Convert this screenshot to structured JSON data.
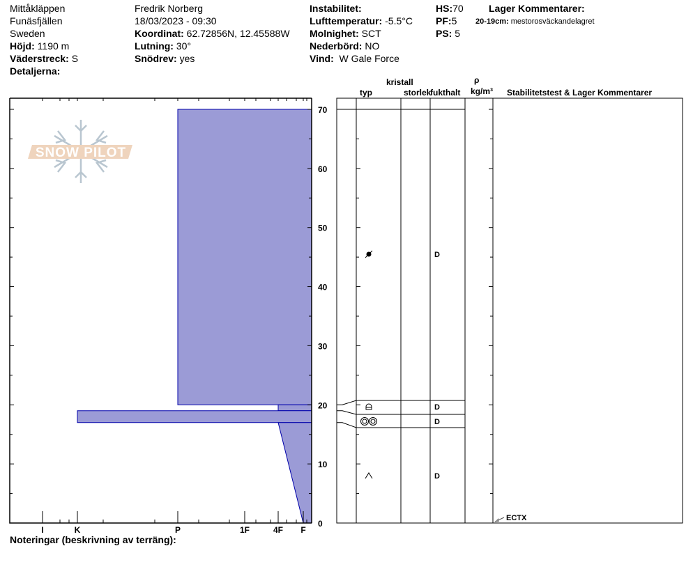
{
  "header": {
    "location": "Mittåkläppen",
    "area": "Funäsfjällen",
    "country": "Sweden",
    "elevation_label": "Höjd:",
    "elevation": "1190 m",
    "aspect_label": "Väderstreck:",
    "aspect": "S",
    "details_label": "Detaljerna:",
    "observer": "Fredrik Norberg",
    "datetime": "18/03/2023 - 09:30",
    "coord_label": "Koordinat:",
    "coord": "62.72856N, 12.45588W",
    "slope_label": "Lutning:",
    "slope": "30°",
    "drift_label": "Snödrev:",
    "drift": "yes",
    "instability_label": "Instabilitet:",
    "airtemp_label": "Lufttemperatur:",
    "airtemp": "-5.5°C",
    "sky_label": "Molnighet:",
    "sky": "SCT",
    "precip_label": "Nederbörd:",
    "precip": "NO",
    "wind_label": "Vind:",
    "wind": "W Gale Force",
    "hs_label": "HS:",
    "hs": "70",
    "pf_label": "PF:",
    "pf": "5",
    "ps_label": "PS:",
    "ps": "5",
    "layer_comments_label": "Lager Kommentarer:",
    "layer_comment_range": "20-19cm:",
    "layer_comment_text": "mestorosväckandelagret"
  },
  "notes_label": "Noteringar (beskrivning av terräng):",
  "logo_text": "SNOW PILOT",
  "table_headers": {
    "crystal": "kristall",
    "type": "typ",
    "size": "storlek",
    "moisture": "fukthalt",
    "rho": "ρ",
    "density_unit": "kg/m³",
    "stability": "Stabilitetstest & Lager Kommentarer"
  },
  "colors": {
    "layer_fill": "#9b9bd6",
    "layer_stroke": "#0000aa"
  },
  "chart_data": {
    "type": "bar",
    "orientation": "horizontal-profile",
    "y_axis": {
      "range": [
        0,
        70
      ],
      "ticks": [
        0,
        10,
        20,
        30,
        40,
        50,
        60,
        70
      ],
      "unit": "cm"
    },
    "x_axis": {
      "hardness_ticks": [
        "I",
        "K",
        "P",
        "1F",
        "4F",
        "F"
      ]
    },
    "layers": [
      {
        "top": 70,
        "bottom": 20,
        "hardness_top": "P",
        "hardness_bottom": "P",
        "grain": "graupel",
        "moisture": "D"
      },
      {
        "top": 20,
        "bottom": 19,
        "hardness_top": "4F",
        "hardness_bottom": "4F",
        "grain": "faceted-rounded",
        "moisture": "D"
      },
      {
        "top": 19,
        "bottom": 17,
        "hardness_top": "K",
        "hardness_bottom": "K",
        "grain": "rounds",
        "moisture": "D"
      },
      {
        "top": 17,
        "bottom": 0,
        "hardness_top": "4F",
        "hardness_bottom": "F",
        "grain": "depth-hoar",
        "moisture": "D"
      }
    ],
    "stability_tests": [
      {
        "label": "ECTX",
        "depth": 0
      }
    ]
  }
}
